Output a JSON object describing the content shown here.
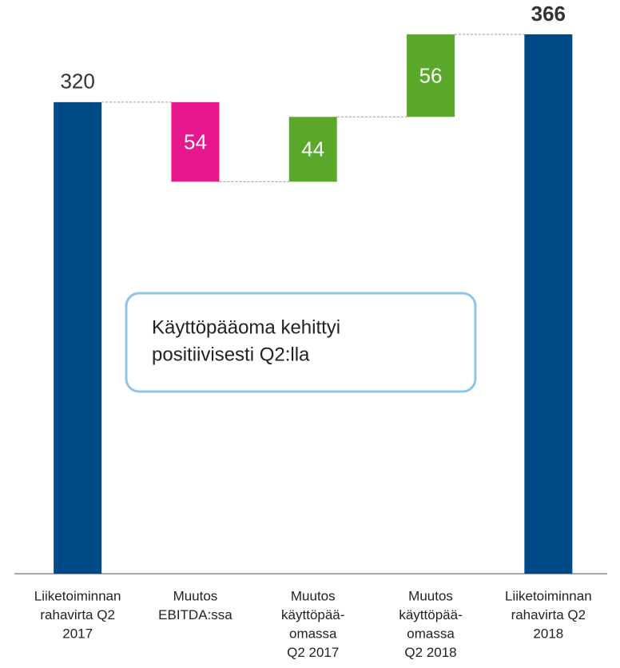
{
  "chart_data": {
    "type": "waterfall",
    "categories": [
      [
        "Liiketoiminnan",
        "rahavirta Q2",
        "2017"
      ],
      [
        "Muutos",
        "EBITDA:ssa"
      ],
      [
        "Muutos",
        "käyttöpää-",
        "omassa",
        "Q2 2017"
      ],
      [
        "Muutos",
        "käyttöpää-",
        "omassa",
        "Q2 2018"
      ],
      [
        "Liiketoiminnan",
        "rahavirta Q2",
        "2018"
      ]
    ],
    "values": [
      320,
      -54,
      44,
      56,
      366
    ],
    "value_labels": [
      "320",
      "54",
      "44",
      "56",
      "366"
    ],
    "measures": [
      "absolute",
      "relative",
      "relative",
      "relative",
      "total"
    ],
    "colors": [
      "#004a87",
      "#e6168c",
      "#5aa829",
      "#5aa829",
      "#004a87"
    ],
    "ylim": [
      0,
      366
    ],
    "annotation": [
      "Käyttöpääoma kehittyi",
      "positiivisesti Q2:lla"
    ]
  }
}
